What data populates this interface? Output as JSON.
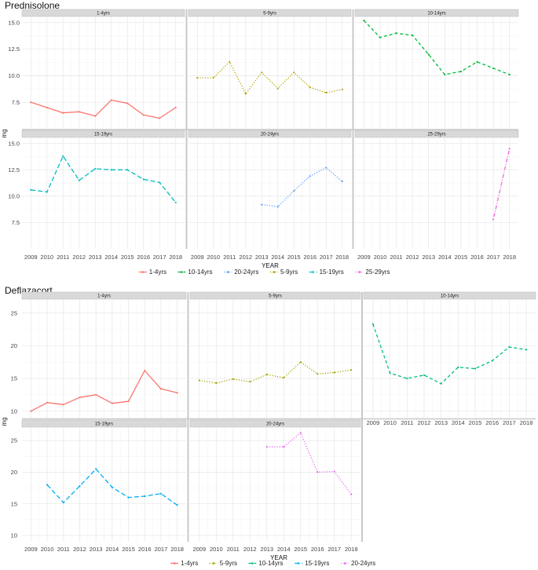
{
  "chart_data": [
    {
      "type": "line",
      "title": "Prednisolone",
      "xlabel": "YEAR",
      "ylabel": "mg",
      "x": [
        2009,
        2010,
        2011,
        2012,
        2013,
        2014,
        2015,
        2016,
        2017,
        2018
      ],
      "ylim": [
        5,
        15.5
      ],
      "yticks": [
        7.5,
        10.0,
        12.5,
        15.0
      ],
      "ytick_labels": [
        "7.5",
        "10.0",
        "12.5",
        "15.0"
      ],
      "grid": true,
      "legend": "bottom",
      "legend_labels": [
        "1-4yrs",
        "10-14yrs",
        "20-24yrs",
        "5-9yrs",
        "15-19yrs",
        "25-29yrs"
      ],
      "facets": [
        {
          "label": "1-4yrs",
          "color": "#F8766D",
          "dash": "solid",
          "x": [
            2009,
            2010,
            2011,
            2012,
            2013,
            2014,
            2015,
            2016,
            2017,
            2018
          ],
          "values": [
            7.5,
            7.0,
            6.5,
            6.6,
            6.2,
            7.7,
            7.4,
            6.3,
            6.0,
            7.0
          ]
        },
        {
          "label": "5-9yrs",
          "color": "#B79F00",
          "dash": "dotted",
          "x": [
            2009,
            2010,
            2011,
            2012,
            2013,
            2014,
            2015,
            2016,
            2017,
            2018
          ],
          "values": [
            9.8,
            9.8,
            11.3,
            8.3,
            10.3,
            8.8,
            10.3,
            8.9,
            8.4,
            8.7
          ]
        },
        {
          "label": "10-14yrs",
          "color": "#00BA38",
          "dash": "dashed",
          "x": [
            2009,
            2010,
            2011,
            2012,
            2013,
            2014,
            2015,
            2016,
            2017,
            2018
          ],
          "values": [
            15.2,
            13.6,
            14.0,
            13.8,
            12.0,
            10.1,
            10.4,
            11.3,
            10.7,
            10.1
          ]
        },
        {
          "label": "15-19yrs",
          "color": "#00BFC4",
          "dash": "longdash",
          "x": [
            2009,
            2010,
            2011,
            2012,
            2013,
            2014,
            2015,
            2016,
            2017,
            2018
          ],
          "values": [
            10.6,
            10.4,
            13.8,
            11.5,
            12.6,
            12.5,
            12.5,
            11.6,
            11.3,
            9.4
          ]
        },
        {
          "label": "20-24yrs",
          "color": "#619CFF",
          "dash": "dotted",
          "x": [
            2013,
            2014,
            2015,
            2016,
            2017,
            2018
          ],
          "values": [
            9.2,
            9.0,
            10.5,
            11.9,
            12.7,
            11.4
          ]
        },
        {
          "label": "25-29yrs",
          "color": "#F564E3",
          "dash": "dotdash",
          "x": [
            2017,
            2018
          ],
          "values": [
            7.8,
            14.5
          ]
        }
      ]
    },
    {
      "type": "line",
      "title": "Deflazacort",
      "xlabel": "YEAR",
      "ylabel": "mg",
      "x": [
        2009,
        2010,
        2011,
        2012,
        2013,
        2014,
        2015,
        2016,
        2017,
        2018
      ],
      "ylim": [
        9,
        27
      ],
      "yticks": [
        10,
        15,
        20,
        25
      ],
      "ytick_labels": [
        "10",
        "15",
        "20",
        "25"
      ],
      "grid": true,
      "legend": "bottom",
      "legend_labels": [
        "1-4yrs",
        "5-9yrs",
        "10-14yrs",
        "15-19yrs",
        "20-24yrs"
      ],
      "facets": [
        {
          "label": "1-4yrs",
          "color": "#F8766D",
          "dash": "solid",
          "x": [
            2009,
            2010,
            2011,
            2012,
            2013,
            2014,
            2015,
            2016,
            2017,
            2018
          ],
          "values": [
            10.0,
            11.3,
            11.0,
            12.1,
            12.5,
            11.2,
            11.5,
            16.2,
            13.4,
            12.8
          ]
        },
        {
          "label": "5-9yrs",
          "color": "#A3A500",
          "dash": "dotted",
          "x": [
            2009,
            2010,
            2011,
            2012,
            2013,
            2014,
            2015,
            2016,
            2017,
            2018
          ],
          "values": [
            14.7,
            14.3,
            14.9,
            14.5,
            15.6,
            15.1,
            17.5,
            15.7,
            15.9,
            16.3
          ]
        },
        {
          "label": "10-14yrs",
          "color": "#00BF7D",
          "dash": "dashed",
          "x": [
            2009,
            2010,
            2011,
            2012,
            2013,
            2014,
            2015,
            2016,
            2017,
            2018
          ],
          "values": [
            23.3,
            15.8,
            15.0,
            15.5,
            14.2,
            16.7,
            16.5,
            17.7,
            19.8,
            19.4
          ]
        },
        {
          "label": "15-19yrs",
          "color": "#00B0F6",
          "dash": "longdash",
          "x": [
            2010,
            2011,
            2012,
            2013,
            2014,
            2015,
            2016,
            2017,
            2018
          ],
          "values": [
            18.0,
            15.2,
            17.8,
            20.5,
            17.6,
            16.0,
            16.2,
            16.6,
            14.8
          ]
        },
        {
          "label": "20-24yrs",
          "color": "#E76BF3",
          "dash": "dotted",
          "x": [
            2013,
            2014,
            2015,
            2016,
            2017,
            2018
          ],
          "values": [
            24.0,
            24.0,
            26.2,
            20.0,
            20.1,
            16.5
          ]
        }
      ]
    }
  ]
}
